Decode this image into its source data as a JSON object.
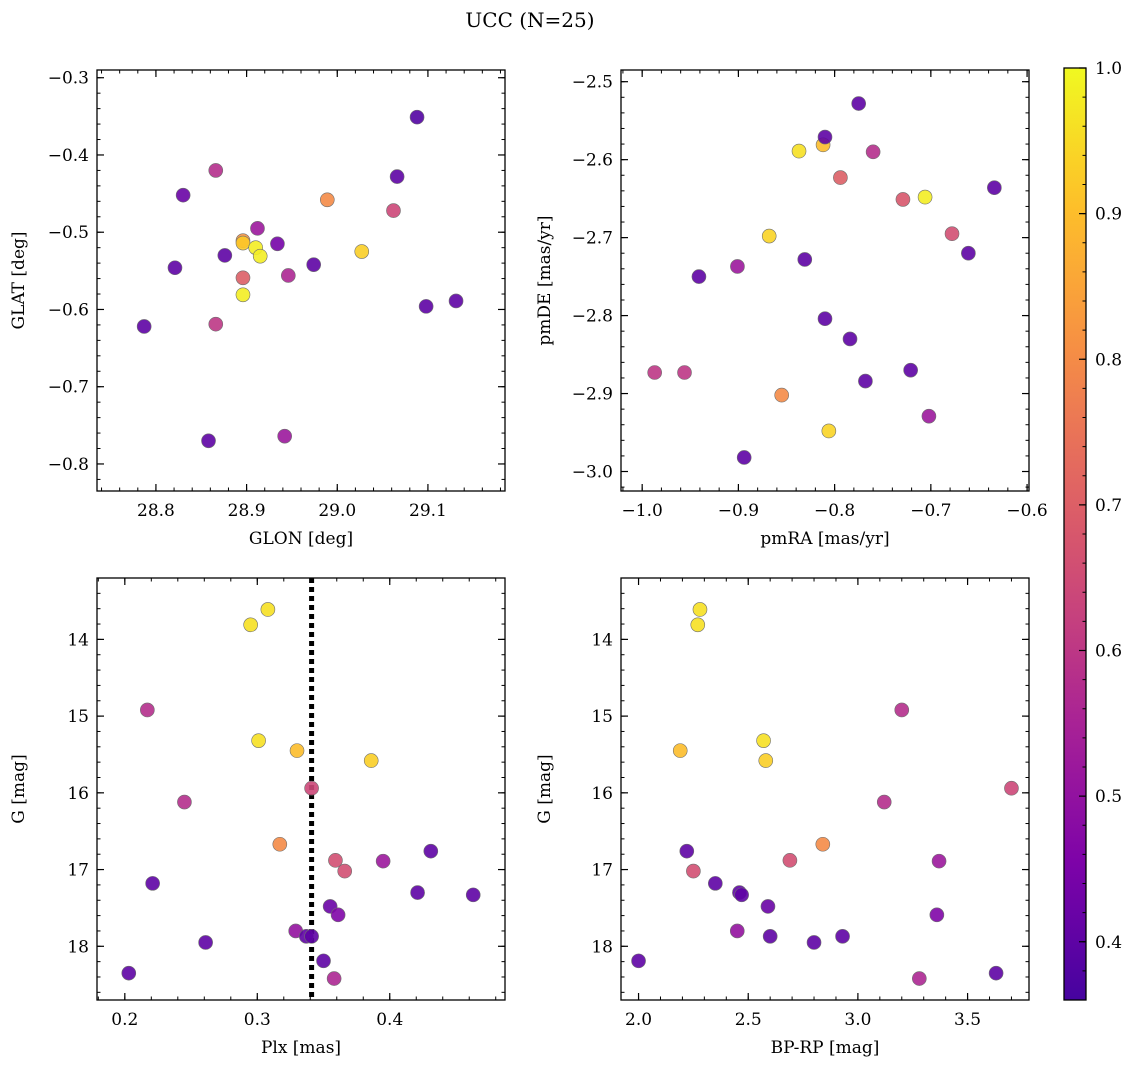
{
  "figure": {
    "title": "UCC (N=25)"
  },
  "colorbar": {
    "min": 0.36,
    "max": 1.0,
    "ticks": [
      0.4,
      0.5,
      0.6,
      0.7,
      0.8,
      0.9,
      1.0
    ],
    "tick_labels": [
      "0.4",
      "0.5",
      "0.6",
      "0.7",
      "0.8",
      "0.9",
      "1.0"
    ],
    "colormap": "plasma"
  },
  "chart_data": [
    {
      "type": "scatter",
      "id": "glon-glat",
      "xlabel": "GLON [deg]",
      "ylabel": "GLAT [deg]",
      "xlim": [
        28.735,
        29.185
      ],
      "ylim": [
        -0.835,
        -0.29
      ],
      "y_inverted": false,
      "xticks": [
        28.8,
        28.9,
        29.0,
        29.1
      ],
      "xtick_labels": [
        "28.8",
        "28.9",
        "29.0",
        "29.1"
      ],
      "yticks": [
        -0.8,
        -0.7,
        -0.6,
        -0.5,
        -0.4,
        -0.3
      ],
      "ytick_labels": [
        "−0.8",
        "−0.7",
        "−0.6",
        "−0.5",
        "−0.4",
        "−0.3"
      ],
      "x_minor_step": 0.02,
      "y_minor_step": 0.02,
      "points": [
        {
          "x": 28.787,
          "y": -0.622,
          "c": 0.4
        },
        {
          "x": 28.821,
          "y": -0.546,
          "c": 0.4
        },
        {
          "x": 28.83,
          "y": -0.452,
          "c": 0.42
        },
        {
          "x": 28.858,
          "y": -0.77,
          "c": 0.4
        },
        {
          "x": 28.866,
          "y": -0.42,
          "c": 0.58
        },
        {
          "x": 28.866,
          "y": -0.619,
          "c": 0.6
        },
        {
          "x": 28.876,
          "y": -0.53,
          "c": 0.4
        },
        {
          "x": 28.896,
          "y": -0.559,
          "c": 0.7
        },
        {
          "x": 28.896,
          "y": -0.511,
          "c": 0.82
        },
        {
          "x": 28.896,
          "y": -0.514,
          "c": 0.92
        },
        {
          "x": 28.896,
          "y": -0.581,
          "c": 0.98
        },
        {
          "x": 28.912,
          "y": -0.495,
          "c": 0.52
        },
        {
          "x": 28.91,
          "y": -0.52,
          "c": 0.98
        },
        {
          "x": 28.915,
          "y": -0.531,
          "c": 0.98
        },
        {
          "x": 28.934,
          "y": -0.515,
          "c": 0.44
        },
        {
          "x": 28.942,
          "y": -0.764,
          "c": 0.52
        },
        {
          "x": 28.946,
          "y": -0.556,
          "c": 0.56
        },
        {
          "x": 28.974,
          "y": -0.542,
          "c": 0.4
        },
        {
          "x": 28.989,
          "y": -0.458,
          "c": 0.8
        },
        {
          "x": 29.027,
          "y": -0.525,
          "c": 0.93
        },
        {
          "x": 29.062,
          "y": -0.472,
          "c": 0.64
        },
        {
          "x": 29.066,
          "y": -0.428,
          "c": 0.4
        },
        {
          "x": 29.088,
          "y": -0.351,
          "c": 0.38
        },
        {
          "x": 29.098,
          "y": -0.596,
          "c": 0.4
        },
        {
          "x": 29.131,
          "y": -0.589,
          "c": 0.4
        }
      ]
    },
    {
      "type": "scatter",
      "id": "pmra-pmde",
      "xlabel": "pmRA [mas/yr]",
      "ylabel": "pmDE [mas/yr]",
      "xlim": [
        -1.022,
        -0.598
      ],
      "ylim": [
        -3.025,
        -2.485
      ],
      "y_inverted": false,
      "xticks": [
        -1.0,
        -0.9,
        -0.8,
        -0.7,
        -0.6
      ],
      "xtick_labels": [
        "−1.0",
        "−0.9",
        "−0.8",
        "−0.7",
        "−0.6"
      ],
      "yticks": [
        -3.0,
        -2.9,
        -2.8,
        -2.7,
        -2.6,
        -2.5
      ],
      "ytick_labels": [
        "−3.0",
        "−2.9",
        "−2.8",
        "−2.7",
        "−2.6",
        "−2.5"
      ],
      "x_minor_step": 0.02,
      "y_minor_step": 0.02,
      "points": [
        {
          "x": -0.987,
          "y": -2.873,
          "c": 0.6
        },
        {
          "x": -0.956,
          "y": -2.873,
          "c": 0.6
        },
        {
          "x": -0.941,
          "y": -2.75,
          "c": 0.4
        },
        {
          "x": -0.901,
          "y": -2.737,
          "c": 0.52
        },
        {
          "x": -0.894,
          "y": -2.982,
          "c": 0.4
        },
        {
          "x": -0.868,
          "y": -2.698,
          "c": 0.94
        },
        {
          "x": -0.855,
          "y": -2.902,
          "c": 0.8
        },
        {
          "x": -0.837,
          "y": -2.589,
          "c": 0.96
        },
        {
          "x": -0.831,
          "y": -2.728,
          "c": 0.4
        },
        {
          "x": -0.812,
          "y": -2.581,
          "c": 0.9
        },
        {
          "x": -0.81,
          "y": -2.571,
          "c": 0.4
        },
        {
          "x": -0.81,
          "y": -2.804,
          "c": 0.4
        },
        {
          "x": -0.806,
          "y": -2.948,
          "c": 0.94
        },
        {
          "x": -0.794,
          "y": -2.623,
          "c": 0.7
        },
        {
          "x": -0.784,
          "y": -2.83,
          "c": 0.4
        },
        {
          "x": -0.775,
          "y": -2.528,
          "c": 0.4
        },
        {
          "x": -0.768,
          "y": -2.884,
          "c": 0.4
        },
        {
          "x": -0.76,
          "y": -2.59,
          "c": 0.58
        },
        {
          "x": -0.729,
          "y": -2.651,
          "c": 0.68
        },
        {
          "x": -0.721,
          "y": -2.87,
          "c": 0.4
        },
        {
          "x": -0.706,
          "y": -2.648,
          "c": 0.98
        },
        {
          "x": -0.702,
          "y": -2.929,
          "c": 0.52
        },
        {
          "x": -0.678,
          "y": -2.695,
          "c": 0.66
        },
        {
          "x": -0.661,
          "y": -2.72,
          "c": 0.4
        },
        {
          "x": -0.634,
          "y": -2.636,
          "c": 0.4
        }
      ]
    },
    {
      "type": "scatter",
      "id": "plx-g",
      "xlabel": "Plx [mas]",
      "ylabel": "G [mag]",
      "xlim": [
        0.179,
        0.487
      ],
      "ylim": [
        13.2,
        18.7
      ],
      "y_inverted": true,
      "xticks": [
        0.2,
        0.3,
        0.4
      ],
      "xtick_labels": [
        "0.2",
        "0.3",
        "0.4"
      ],
      "yticks": [
        14,
        15,
        16,
        17,
        18
      ],
      "ytick_labels": [
        "14",
        "15",
        "16",
        "17",
        "18"
      ],
      "x_minor_step": 0.02,
      "y_minor_step": 0.2,
      "vline": {
        "x": 0.341,
        "style": "dotted"
      },
      "points": [
        {
          "x": 0.203,
          "y": 18.35,
          "c": 0.4
        },
        {
          "x": 0.217,
          "y": 14.92,
          "c": 0.58
        },
        {
          "x": 0.221,
          "y": 17.18,
          "c": 0.4
        },
        {
          "x": 0.245,
          "y": 16.12,
          "c": 0.58
        },
        {
          "x": 0.261,
          "y": 17.95,
          "c": 0.4
        },
        {
          "x": 0.295,
          "y": 13.81,
          "c": 0.96
        },
        {
          "x": 0.301,
          "y": 15.32,
          "c": 0.96
        },
        {
          "x": 0.308,
          "y": 13.61,
          "c": 0.96
        },
        {
          "x": 0.317,
          "y": 16.67,
          "c": 0.8
        },
        {
          "x": 0.329,
          "y": 17.8,
          "c": 0.5
        },
        {
          "x": 0.33,
          "y": 15.45,
          "c": 0.9
        },
        {
          "x": 0.337,
          "y": 17.87,
          "c": 0.4
        },
        {
          "x": 0.341,
          "y": 17.87,
          "c": 0.4
        },
        {
          "x": 0.341,
          "y": 15.94,
          "c": 0.64
        },
        {
          "x": 0.35,
          "y": 18.19,
          "c": 0.4
        },
        {
          "x": 0.355,
          "y": 17.48,
          "c": 0.42
        },
        {
          "x": 0.358,
          "y": 18.42,
          "c": 0.56
        },
        {
          "x": 0.359,
          "y": 16.88,
          "c": 0.66
        },
        {
          "x": 0.361,
          "y": 17.59,
          "c": 0.46
        },
        {
          "x": 0.366,
          "y": 17.02,
          "c": 0.66
        },
        {
          "x": 0.386,
          "y": 15.58,
          "c": 0.93
        },
        {
          "x": 0.395,
          "y": 16.89,
          "c": 0.52
        },
        {
          "x": 0.421,
          "y": 17.3,
          "c": 0.4
        },
        {
          "x": 0.431,
          "y": 16.76,
          "c": 0.4
        },
        {
          "x": 0.463,
          "y": 17.33,
          "c": 0.4
        }
      ]
    },
    {
      "type": "scatter",
      "id": "bprp-g",
      "xlabel": "BP-RP [mag]",
      "ylabel": "G [mag]",
      "xlim": [
        1.92,
        3.78
      ],
      "ylim": [
        13.2,
        18.7
      ],
      "y_inverted": true,
      "xticks": [
        2.0,
        2.5,
        3.0,
        3.5
      ],
      "xtick_labels": [
        "2.0",
        "2.5",
        "3.0",
        "3.5"
      ],
      "yticks": [
        14,
        15,
        16,
        17,
        18
      ],
      "ytick_labels": [
        "14",
        "15",
        "16",
        "17",
        "18"
      ],
      "x_minor_step": 0.1,
      "y_minor_step": 0.2,
      "points": [
        {
          "x": 2.0,
          "y": 18.19,
          "c": 0.4
        },
        {
          "x": 2.19,
          "y": 15.45,
          "c": 0.9
        },
        {
          "x": 2.22,
          "y": 16.76,
          "c": 0.4
        },
        {
          "x": 2.25,
          "y": 17.02,
          "c": 0.66
        },
        {
          "x": 2.27,
          "y": 13.81,
          "c": 0.96
        },
        {
          "x": 2.28,
          "y": 13.61,
          "c": 0.96
        },
        {
          "x": 2.35,
          "y": 17.18,
          "c": 0.4
        },
        {
          "x": 2.45,
          "y": 17.8,
          "c": 0.5
        },
        {
          "x": 2.46,
          "y": 17.3,
          "c": 0.4
        },
        {
          "x": 2.47,
          "y": 17.33,
          "c": 0.4
        },
        {
          "x": 2.57,
          "y": 15.32,
          "c": 0.96
        },
        {
          "x": 2.58,
          "y": 15.58,
          "c": 0.93
        },
        {
          "x": 2.59,
          "y": 17.48,
          "c": 0.42
        },
        {
          "x": 2.6,
          "y": 17.87,
          "c": 0.4
        },
        {
          "x": 2.69,
          "y": 16.88,
          "c": 0.66
        },
        {
          "x": 2.8,
          "y": 17.95,
          "c": 0.4
        },
        {
          "x": 2.84,
          "y": 16.67,
          "c": 0.8
        },
        {
          "x": 2.93,
          "y": 17.87,
          "c": 0.4
        },
        {
          "x": 3.12,
          "y": 16.12,
          "c": 0.58
        },
        {
          "x": 3.2,
          "y": 14.92,
          "c": 0.58
        },
        {
          "x": 3.28,
          "y": 18.42,
          "c": 0.56
        },
        {
          "x": 3.36,
          "y": 17.59,
          "c": 0.46
        },
        {
          "x": 3.37,
          "y": 16.89,
          "c": 0.52
        },
        {
          "x": 3.63,
          "y": 18.35,
          "c": 0.4
        },
        {
          "x": 3.7,
          "y": 15.94,
          "c": 0.64
        }
      ]
    }
  ]
}
